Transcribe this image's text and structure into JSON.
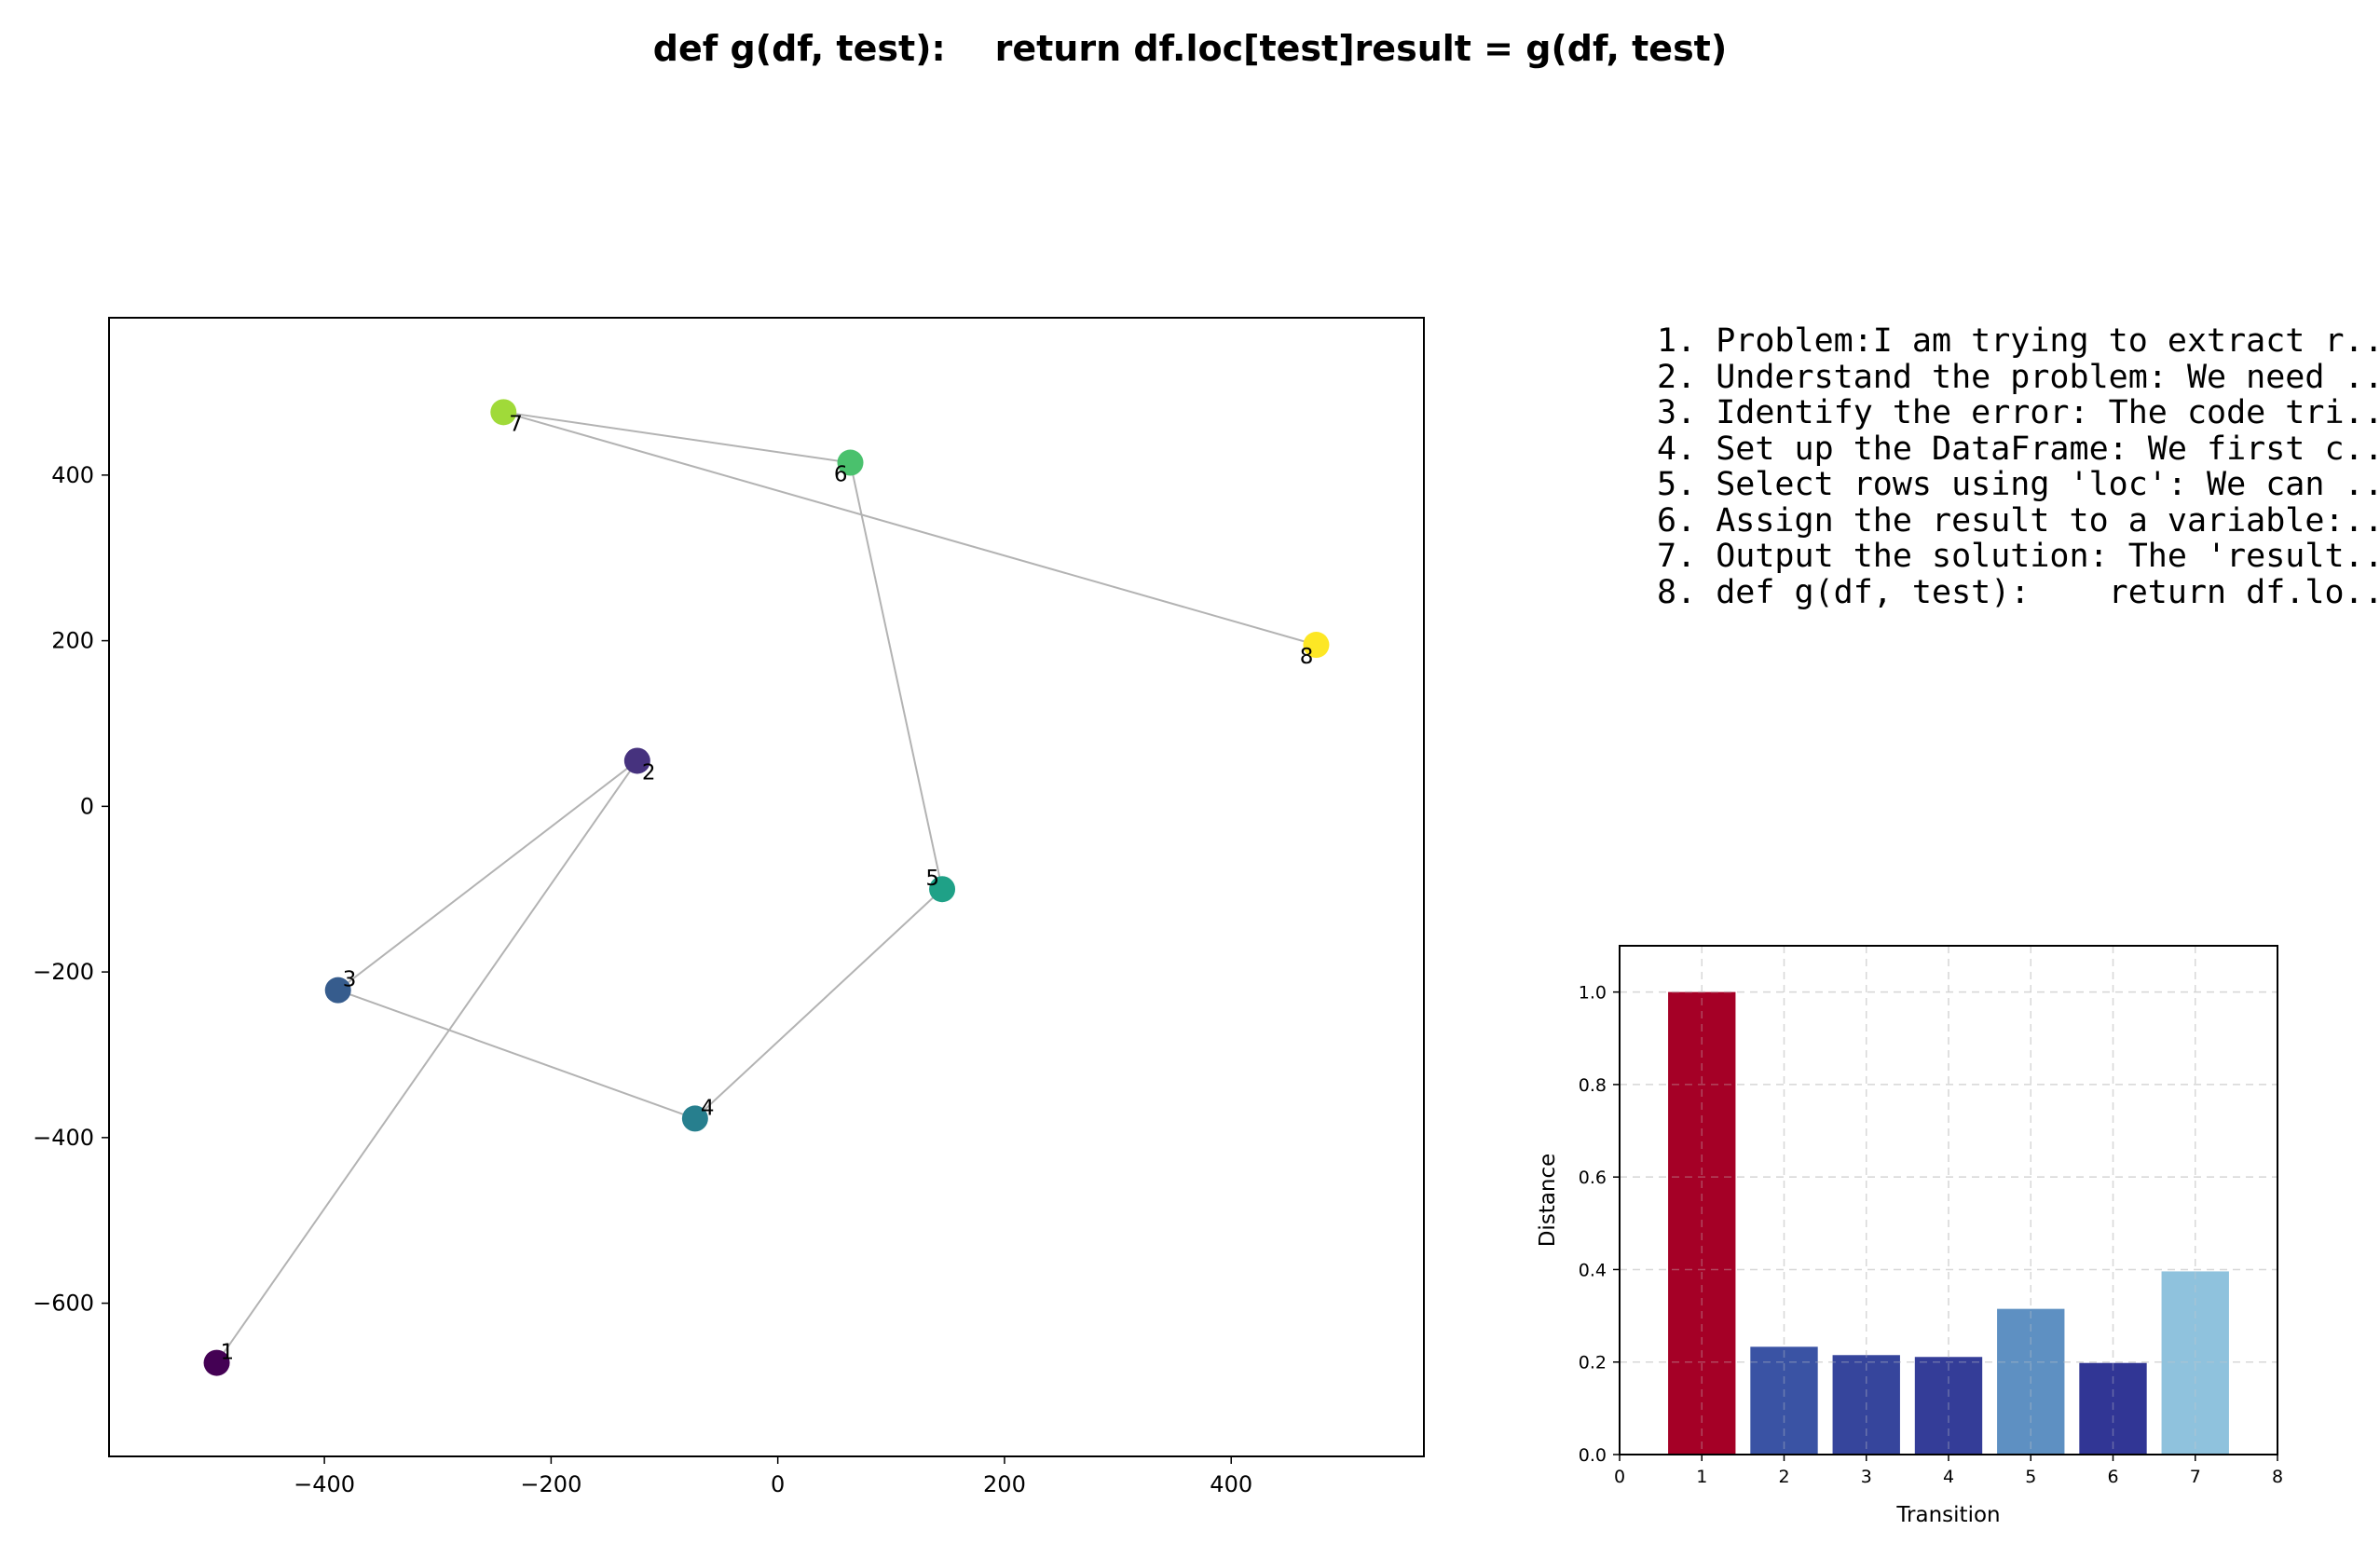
{
  "title": "def g(df, test):    return df.loc[test]result = g(df, test)",
  "steps": [
    "1. Problem:I am trying to extract r...",
    "2. Understand the problem: We need ...",
    "3. Identify the error: The code tri...",
    "4. Set up the DataFrame: We first c...",
    "5. Select rows using 'loc': We can ...",
    "6. Assign the result to a variable:...",
    "7. Output the solution: The 'result...",
    "8. def g(df, test):    return df.lo..."
  ],
  "chart_data": [
    {
      "type": "scatter",
      "title": "",
      "xlabel": "",
      "ylabel": "",
      "xlim": [
        -590,
        570
      ],
      "ylim": [
        -785,
        590
      ],
      "xticks": [
        -400,
        -200,
        0,
        200,
        400
      ],
      "yticks": [
        -600,
        -400,
        -200,
        0,
        200,
        400
      ],
      "grid": false,
      "connected": true,
      "line_color": "#b3b3b3",
      "points": [
        {
          "label": "1",
          "x": -495,
          "y": -672,
          "color": "#440154"
        },
        {
          "label": "2",
          "x": -124,
          "y": 55,
          "color": "#46327e"
        },
        {
          "label": "3",
          "x": -388,
          "y": -222,
          "color": "#365c8d"
        },
        {
          "label": "4",
          "x": -73,
          "y": -377,
          "color": "#277f8e"
        },
        {
          "label": "5",
          "x": 145,
          "y": -100,
          "color": "#1fa187"
        },
        {
          "label": "6",
          "x": 64,
          "y": 415,
          "color": "#4ac16d"
        },
        {
          "label": "7",
          "x": -242,
          "y": 476,
          "color": "#a0da39"
        },
        {
          "label": "8",
          "x": 475,
          "y": 195,
          "color": "#fde725"
        }
      ]
    },
    {
      "type": "bar",
      "title": "",
      "xlabel": "Transition",
      "ylabel": "Distance",
      "xlim": [
        0,
        8
      ],
      "ylim": [
        0,
        1.1
      ],
      "xticks": [
        0,
        1,
        2,
        3,
        4,
        5,
        6,
        7,
        8
      ],
      "yticks": [
        0.0,
        0.2,
        0.4,
        0.6,
        0.8,
        1.0
      ],
      "grid": true,
      "categories": [
        1,
        2,
        3,
        4,
        5,
        6,
        7
      ],
      "values": [
        1.0,
        0.233,
        0.215,
        0.211,
        0.315,
        0.198,
        0.396
      ],
      "colors": [
        "#a50026",
        "#3a53a4",
        "#36459c",
        "#343d98",
        "#5e90c2",
        "#313695",
        "#8fc2dd"
      ]
    }
  ]
}
